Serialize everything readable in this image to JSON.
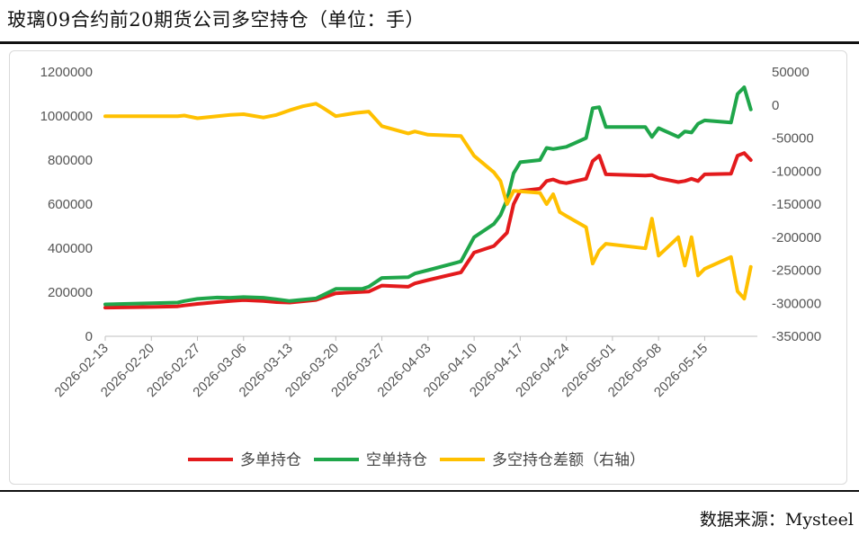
{
  "title": "玻璃09合约前20期货公司多空持仓（单位：手）",
  "source": "数据来源：Mysteel",
  "colors": {
    "long": "#e31a1c",
    "short": "#1fa64a",
    "diff": "#ffc000"
  },
  "chart_data": {
    "type": "line",
    "dates": [
      "2026-02-13",
      "2026-02-14",
      "2026-02-15",
      "2026-02-16",
      "2026-02-17",
      "2026-02-18",
      "2026-02-19",
      "2026-02-20",
      "2026-02-21",
      "2026-02-22",
      "2026-02-23",
      "2026-02-24",
      "2026-02-25",
      "2026-02-26",
      "2026-02-27",
      "2026-02-28",
      "2026-03-01",
      "2026-03-02",
      "2026-03-03",
      "2026-03-04",
      "2026-03-05",
      "2026-03-06",
      "2026-03-07",
      "2026-03-08",
      "2026-03-09",
      "2026-03-10",
      "2026-03-11",
      "2026-03-12",
      "2026-03-13",
      "2026-03-14",
      "2026-03-15",
      "2026-03-16",
      "2026-03-17",
      "2026-03-18",
      "2026-03-19",
      "2026-03-20",
      "2026-03-21",
      "2026-03-22",
      "2026-03-23",
      "2026-03-24",
      "2026-03-25",
      "2026-03-26",
      "2026-03-27",
      "2026-03-28",
      "2026-03-29",
      "2026-03-30",
      "2026-03-31",
      "2026-04-01",
      "2026-04-02",
      "2026-04-03",
      "2026-04-04",
      "2026-04-05",
      "2026-04-06",
      "2026-04-07",
      "2026-04-08",
      "2026-04-09",
      "2026-04-10",
      "2026-04-11",
      "2026-04-12",
      "2026-04-13",
      "2026-04-14",
      "2026-04-15",
      "2026-04-16",
      "2026-04-17",
      "2026-04-18",
      "2026-04-19",
      "2026-04-20",
      "2026-04-21",
      "2026-04-22",
      "2026-04-23",
      "2026-04-24",
      "2026-04-25",
      "2026-04-26",
      "2026-04-27",
      "2026-04-28",
      "2026-04-29",
      "2026-04-30",
      "2026-05-01",
      "2026-05-02",
      "2026-05-03",
      "2026-05-04",
      "2026-05-05",
      "2026-05-06",
      "2026-05-07",
      "2026-05-08",
      "2026-05-09",
      "2026-05-10",
      "2026-05-11",
      "2026-05-12",
      "2026-05-13",
      "2026-05-14",
      "2026-05-15",
      "2026-05-16",
      "2026-05-17",
      "2026-05-18",
      "2026-05-19",
      "2026-05-20",
      "2026-05-21",
      "2026-05-22",
      "2026-05-23"
    ],
    "x_tick_labels": [
      "2026-02-13",
      "2026-02-20",
      "2026-02-27",
      "2026-03-06",
      "2026-03-13",
      "2026-03-20",
      "2026-03-27",
      "2026-04-03",
      "2026-04-10",
      "2026-04-17",
      "2026-04-24",
      "2026-05-01",
      "2026-05-08",
      "2026-05-15"
    ],
    "y_left": {
      "range": [
        0,
        1200000
      ],
      "ticks": [
        "0",
        "200000",
        "400000",
        "600000",
        "800000",
        "1000000",
        "1200000"
      ]
    },
    "y_right": {
      "range": [
        -350000,
        50000
      ],
      "ticks": [
        "-350000",
        "-300000",
        "-250000",
        "-200000",
        "-150000",
        "-100000",
        "-50000",
        "0",
        "50000"
      ]
    },
    "legend": {
      "position": "bottom"
    },
    "grid": false,
    "series": [
      {
        "name": "多单持仓",
        "axis": "left",
        "color": "#e31a1c",
        "points": [
          [
            "2026-02-13",
            130000
          ],
          [
            "2026-02-20",
            133000
          ],
          [
            "2026-02-24",
            136000
          ],
          [
            "2026-02-25",
            140000
          ],
          [
            "2026-02-27",
            147000
          ],
          [
            "2026-03-02",
            155000
          ],
          [
            "2026-03-04",
            160000
          ],
          [
            "2026-03-06",
            164000
          ],
          [
            "2026-03-09",
            160000
          ],
          [
            "2026-03-11",
            155000
          ],
          [
            "2026-03-13",
            153000
          ],
          [
            "2026-03-17",
            165000
          ],
          [
            "2026-03-20",
            195000
          ],
          [
            "2026-03-23",
            200000
          ],
          [
            "2026-03-25",
            203000
          ],
          [
            "2026-03-27",
            230000
          ],
          [
            "2026-03-31",
            225000
          ],
          [
            "2026-04-01",
            240000
          ],
          [
            "2026-04-03",
            255000
          ],
          [
            "2026-04-08",
            290000
          ],
          [
            "2026-04-10",
            380000
          ],
          [
            "2026-04-13",
            410000
          ],
          [
            "2026-04-15",
            470000
          ],
          [
            "2026-04-16",
            600000
          ],
          [
            "2026-04-17",
            660000
          ],
          [
            "2026-04-20",
            670000
          ],
          [
            "2026-04-21",
            705000
          ],
          [
            "2026-04-22",
            712000
          ],
          [
            "2026-04-23",
            700000
          ],
          [
            "2026-04-24",
            695000
          ],
          [
            "2026-04-27",
            715000
          ],
          [
            "2026-04-28",
            795000
          ],
          [
            "2026-04-29",
            820000
          ],
          [
            "2026-04-30",
            735000
          ],
          [
            "2026-05-06",
            730000
          ],
          [
            "2026-05-07",
            732000
          ],
          [
            "2026-05-08",
            718000
          ],
          [
            "2026-05-11",
            700000
          ],
          [
            "2026-05-12",
            705000
          ],
          [
            "2026-05-13",
            715000
          ],
          [
            "2026-05-14",
            705000
          ],
          [
            "2026-05-15",
            735000
          ],
          [
            "2026-05-19",
            738000
          ],
          [
            "2026-05-20",
            820000
          ],
          [
            "2026-05-21",
            832000
          ],
          [
            "2026-05-22",
            800000
          ]
        ]
      },
      {
        "name": "空单持仓",
        "axis": "left",
        "color": "#1fa64a",
        "points": [
          [
            "2026-02-13",
            145000
          ],
          [
            "2026-02-20",
            150000
          ],
          [
            "2026-02-24",
            153000
          ],
          [
            "2026-02-25",
            160000
          ],
          [
            "2026-02-27",
            170000
          ],
          [
            "2026-03-02",
            176000
          ],
          [
            "2026-03-04",
            175000
          ],
          [
            "2026-03-06",
            178000
          ],
          [
            "2026-03-09",
            175000
          ],
          [
            "2026-03-11",
            168000
          ],
          [
            "2026-03-13",
            160000
          ],
          [
            "2026-03-17",
            172000
          ],
          [
            "2026-03-20",
            215000
          ],
          [
            "2026-03-24",
            215000
          ],
          [
            "2026-03-25",
            225000
          ],
          [
            "2026-03-27",
            265000
          ],
          [
            "2026-03-31",
            268000
          ],
          [
            "2026-04-01",
            285000
          ],
          [
            "2026-04-03",
            300000
          ],
          [
            "2026-04-08",
            340000
          ],
          [
            "2026-04-10",
            450000
          ],
          [
            "2026-04-13",
            510000
          ],
          [
            "2026-04-14",
            550000
          ],
          [
            "2026-04-15",
            620000
          ],
          [
            "2026-04-16",
            740000
          ],
          [
            "2026-04-17",
            790000
          ],
          [
            "2026-04-20",
            800000
          ],
          [
            "2026-04-21",
            855000
          ],
          [
            "2026-04-22",
            850000
          ],
          [
            "2026-04-24",
            860000
          ],
          [
            "2026-04-27",
            900000
          ],
          [
            "2026-04-28",
            1035000
          ],
          [
            "2026-04-29",
            1040000
          ],
          [
            "2026-04-30",
            950000
          ],
          [
            "2026-05-06",
            950000
          ],
          [
            "2026-05-07",
            905000
          ],
          [
            "2026-05-08",
            945000
          ],
          [
            "2026-05-11",
            905000
          ],
          [
            "2026-05-12",
            930000
          ],
          [
            "2026-05-13",
            925000
          ],
          [
            "2026-05-14",
            965000
          ],
          [
            "2026-05-15",
            980000
          ],
          [
            "2026-05-19",
            970000
          ],
          [
            "2026-05-20",
            1100000
          ],
          [
            "2026-05-21",
            1130000
          ],
          [
            "2026-05-22",
            1030000
          ]
        ]
      },
      {
        "name": "多空持仓差额（右轴）",
        "axis": "right",
        "color": "#ffc000",
        "points": [
          [
            "2026-02-13",
            -17000
          ],
          [
            "2026-02-20",
            -17000
          ],
          [
            "2026-02-24",
            -17000
          ],
          [
            "2026-02-25",
            -16000
          ],
          [
            "2026-02-27",
            -20000
          ],
          [
            "2026-03-02",
            -17000
          ],
          [
            "2026-03-04",
            -15000
          ],
          [
            "2026-03-06",
            -14000
          ],
          [
            "2026-03-09",
            -19000
          ],
          [
            "2026-03-11",
            -15000
          ],
          [
            "2026-03-13",
            -8000
          ],
          [
            "2026-03-15",
            -2000
          ],
          [
            "2026-03-17",
            2000
          ],
          [
            "2026-03-18",
            -4000
          ],
          [
            "2026-03-20",
            -17000
          ],
          [
            "2026-03-23",
            -12000
          ],
          [
            "2026-03-25",
            -10000
          ],
          [
            "2026-03-27",
            -32000
          ],
          [
            "2026-03-31",
            -43000
          ],
          [
            "2026-04-01",
            -40000
          ],
          [
            "2026-04-03",
            -45000
          ],
          [
            "2026-04-08",
            -47000
          ],
          [
            "2026-04-10",
            -77000
          ],
          [
            "2026-04-13",
            -102000
          ],
          [
            "2026-04-14",
            -115000
          ],
          [
            "2026-04-15",
            -150000
          ],
          [
            "2026-04-16",
            -130000
          ],
          [
            "2026-04-20",
            -133000
          ],
          [
            "2026-04-21",
            -150000
          ],
          [
            "2026-04-22",
            -135000
          ],
          [
            "2026-04-23",
            -162000
          ],
          [
            "2026-04-24",
            -168000
          ],
          [
            "2026-04-27",
            -185000
          ],
          [
            "2026-04-28",
            -240000
          ],
          [
            "2026-04-29",
            -220000
          ],
          [
            "2026-04-30",
            -210000
          ],
          [
            "2026-05-06",
            -217000
          ],
          [
            "2026-05-07",
            -172000
          ],
          [
            "2026-05-08",
            -228000
          ],
          [
            "2026-05-11",
            -200000
          ],
          [
            "2026-05-12",
            -243000
          ],
          [
            "2026-05-13",
            -200000
          ],
          [
            "2026-05-14",
            -258000
          ],
          [
            "2026-05-15",
            -248000
          ],
          [
            "2026-05-19",
            -230000
          ],
          [
            "2026-05-20",
            -282000
          ],
          [
            "2026-05-21",
            -293000
          ],
          [
            "2026-05-22",
            -245000
          ]
        ]
      }
    ]
  }
}
